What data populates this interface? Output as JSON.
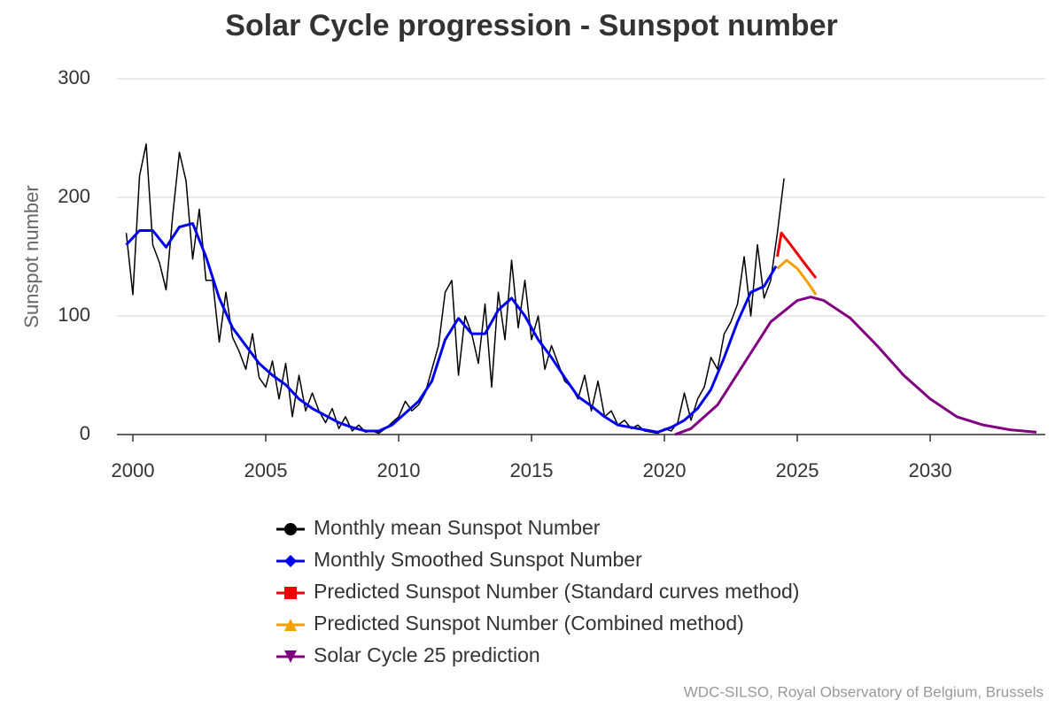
{
  "chart_data": {
    "type": "line",
    "title": "Solar Cycle progression - Sunspot number",
    "ylabel": "Sunspot number",
    "source": "WDC-SILSO, Royal Observatory of Belgium, Brussels",
    "xlim": [
      1999.4,
      2034.33
    ],
    "xticks": [
      2000,
      2005,
      2010,
      2015,
      2020,
      2025,
      2030
    ],
    "ylim": [
      0,
      300
    ],
    "yticks": [
      0,
      100,
      200,
      300
    ],
    "grid": true,
    "series": [
      {
        "name": "Monthly mean Sunspot Number",
        "color": "#000000",
        "marker": "circle",
        "width": 1.5,
        "x": [
          1999.75,
          2000,
          2000.25,
          2000.5,
          2000.75,
          2001,
          2001.25,
          2001.5,
          2001.75,
          2002,
          2002.25,
          2002.5,
          2002.75,
          2003,
          2003.25,
          2003.5,
          2003.75,
          2004,
          2004.25,
          2004.5,
          2004.75,
          2005,
          2005.25,
          2005.5,
          2005.75,
          2006,
          2006.25,
          2006.5,
          2006.75,
          2007,
          2007.25,
          2007.5,
          2007.75,
          2008,
          2008.25,
          2008.5,
          2008.75,
          2009,
          2009.25,
          2009.5,
          2009.75,
          2010,
          2010.25,
          2010.5,
          2010.75,
          2011,
          2011.25,
          2011.5,
          2011.75,
          2012,
          2012.25,
          2012.5,
          2012.75,
          2013,
          2013.25,
          2013.5,
          2013.75,
          2014,
          2014.25,
          2014.5,
          2014.75,
          2015,
          2015.25,
          2015.5,
          2015.75,
          2016,
          2016.25,
          2016.5,
          2016.75,
          2017,
          2017.25,
          2017.5,
          2017.75,
          2018,
          2018.25,
          2018.5,
          2018.75,
          2019,
          2019.25,
          2019.5,
          2019.75,
          2020,
          2020.25,
          2020.5,
          2020.75,
          2021,
          2021.25,
          2021.5,
          2021.75,
          2022,
          2022.25,
          2022.5,
          2022.75,
          2023,
          2023.25,
          2023.5,
          2023.75,
          2024,
          2024.25,
          2024.5
        ],
        "values": [
          170,
          118,
          218,
          245,
          160,
          145,
          122,
          185,
          238,
          214,
          148,
          190,
          130,
          130,
          78,
          120,
          82,
          70,
          55,
          85,
          48,
          40,
          62,
          30,
          60,
          15,
          50,
          20,
          35,
          20,
          10,
          22,
          5,
          15,
          3,
          8,
          2,
          3,
          1,
          5,
          10,
          15,
          28,
          20,
          25,
          35,
          55,
          75,
          120,
          130,
          50,
          100,
          85,
          60,
          110,
          40,
          120,
          80,
          147,
          90,
          130,
          80,
          100,
          55,
          75,
          60,
          45,
          40,
          30,
          50,
          20,
          45,
          15,
          20,
          8,
          12,
          5,
          8,
          3,
          2,
          1,
          5,
          3,
          10,
          35,
          12,
          30,
          40,
          65,
          55,
          85,
          95,
          110,
          150,
          100,
          160,
          115,
          130,
          170,
          216
        ]
      },
      {
        "name": "Monthly Smoothed Sunspot Number",
        "color": "#0000ee",
        "marker": "diamond",
        "width": 3,
        "x": [
          1999.75,
          2000.25,
          2000.75,
          2001.25,
          2001.75,
          2002.25,
          2002.75,
          2003.25,
          2003.75,
          2004.25,
          2004.75,
          2005.25,
          2005.75,
          2006.25,
          2006.75,
          2007.25,
          2007.75,
          2008.25,
          2008.75,
          2009.25,
          2009.75,
          2010.25,
          2010.75,
          2011.25,
          2011.75,
          2012.25,
          2012.75,
          2013.25,
          2013.75,
          2014.25,
          2014.75,
          2015.25,
          2015.75,
          2016.25,
          2016.75,
          2017.25,
          2017.75,
          2018.25,
          2018.75,
          2019.25,
          2019.75,
          2020.25,
          2020.75,
          2021.25,
          2021.75,
          2022.25,
          2022.75,
          2023.25,
          2023.75,
          2024.2
        ],
        "values": [
          160,
          172,
          172,
          158,
          175,
          178,
          150,
          115,
          90,
          75,
          60,
          50,
          42,
          30,
          22,
          16,
          10,
          6,
          3,
          3,
          8,
          18,
          28,
          45,
          80,
          98,
          85,
          85,
          105,
          115,
          100,
          80,
          65,
          48,
          32,
          24,
          15,
          8,
          6,
          4,
          2,
          6,
          12,
          22,
          38,
          65,
          95,
          120,
          125,
          142
        ]
      },
      {
        "name": "Predicted Sunspot Number (Standard curves method)",
        "color": "#ee0000",
        "marker": "square",
        "width": 3,
        "x": [
          2024.25,
          2024.4,
          2024.75,
          2025.25,
          2025.7
        ],
        "values": [
          150,
          170,
          160,
          145,
          132
        ]
      },
      {
        "name": "Predicted Sunspot Number (Combined method)",
        "color": "#f5a000",
        "marker": "triangle",
        "width": 3,
        "x": [
          2024.25,
          2024.6,
          2025,
          2025.4,
          2025.7
        ],
        "values": [
          140,
          147,
          140,
          128,
          118
        ]
      },
      {
        "name": "Solar Cycle 25 prediction",
        "color": "#800080",
        "marker": "down-triangle",
        "width": 3,
        "x": [
          2020.4,
          2021,
          2022,
          2023,
          2024,
          2025,
          2025.5,
          2026,
          2027,
          2028,
          2029,
          2030,
          2031,
          2032,
          2033,
          2034
        ],
        "values": [
          0,
          5,
          25,
          60,
          95,
          113,
          116,
          113,
          98,
          75,
          50,
          30,
          15,
          8,
          4,
          2
        ]
      }
    ]
  }
}
